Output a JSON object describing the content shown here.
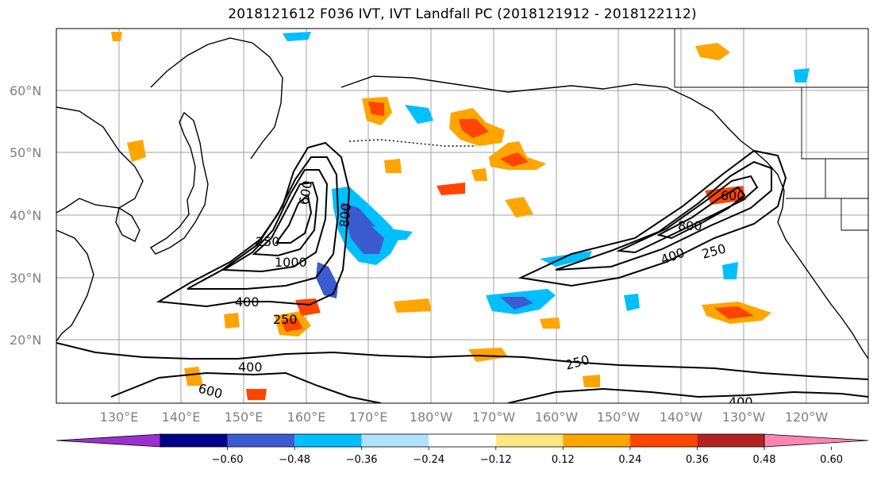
{
  "title": "2018121612 F036 IVT, IVT Landfall PC (2018121912 - 2018122112)",
  "map": {
    "lat_labels": [
      "60°N",
      "50°N",
      "40°N",
      "30°N",
      "20°N"
    ],
    "lon_labels": [
      "130°E",
      "140°E",
      "150°E",
      "160°E",
      "170°E",
      "180°W",
      "170°W",
      "160°W",
      "150°W",
      "140°W",
      "130°W",
      "120°W"
    ],
    "contour_labels": [
      "250",
      "600",
      "1000",
      "800",
      "400",
      "250",
      "400",
      "600",
      "800",
      "600",
      "400",
      "250",
      "250",
      "400",
      "800",
      "400"
    ],
    "grid_color": "#a0a0a0",
    "coast_color": "#000000"
  },
  "colorbar": {
    "bins": [
      "#9b30d0",
      "#00008b",
      "#3b5bd1",
      "#00bfff",
      "#b0e2ff",
      "#ffffff",
      "#ffe680",
      "#ffa500",
      "#ff4500",
      "#b22222",
      "#ff85b0"
    ],
    "ticks": [
      "−0.60",
      "−0.48",
      "−0.36",
      "−0.24",
      "−0.12",
      "0.12",
      "0.24",
      "0.36",
      "0.48",
      "0.60"
    ]
  }
}
